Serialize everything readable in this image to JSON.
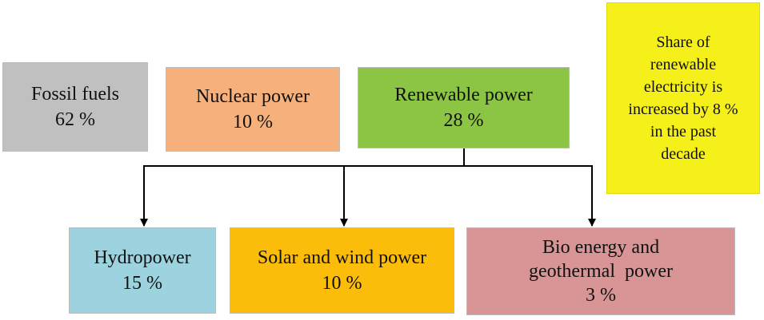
{
  "nodes": [
    {
      "lines": [
        "Fossil fuels",
        "62 %"
      ]
    },
    {
      "lines": [
        "Nuclear power",
        "10 %"
      ]
    },
    {
      "lines": [
        "Renewable power",
        "28 %"
      ]
    },
    {
      "lines": [
        "Hydropower",
        "15 %"
      ]
    },
    {
      "lines": [
        "Solar and wind power",
        "10 %"
      ]
    },
    {
      "lines": [
        "Bio energy and",
        "geothermal  power",
        "3 %"
      ]
    }
  ],
  "note": {
    "lines": [
      "Share of",
      "renewable",
      "electricity is",
      "increased by 8 %",
      "in the past",
      "decade"
    ]
  }
}
